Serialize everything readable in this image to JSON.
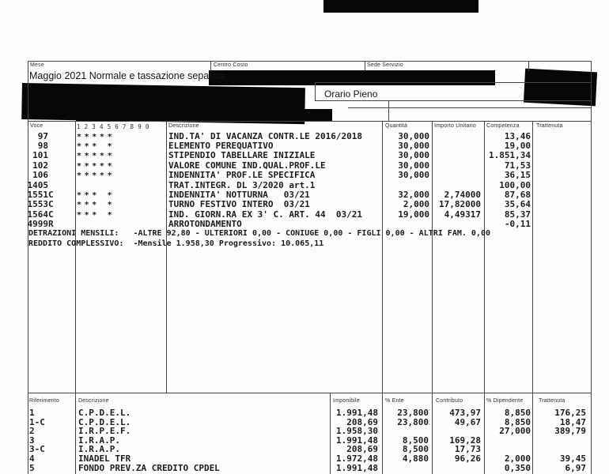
{
  "header": {
    "mese_label": "Mese",
    "centro_costo_label": "Centro Costo",
    "sede_servizio_label": "Sede Servizio",
    "periodo": "Maggio 2021 Normale e tassazione separata",
    "orario": "Orario Pieno"
  },
  "voci_table": {
    "headers": {
      "voce": "Voce",
      "digits": "1 2 3 4 5 6 7 8 9 0",
      "descrizione": "Descrizione",
      "quantita": "Quantità",
      "importo_unitario": "Importo Unitario",
      "competenza": "Competenza",
      "trattenuta": "Trattenuta"
    },
    "rows": [
      {
        "voce": "97",
        "stars": [
          1,
          2,
          3,
          4,
          5
        ],
        "descrizione": "IND.TA' DI VACANZA CONTR.LE 2016/2018",
        "quantita": "30,000",
        "importo_unitario": "",
        "competenza": "13,46",
        "trattenuta": ""
      },
      {
        "voce": "98",
        "stars": [
          1,
          2,
          3,
          5
        ],
        "descrizione": "ELEMENTO PEREQUATIVO",
        "quantita": "30,000",
        "importo_unitario": "",
        "competenza": "19,00",
        "trattenuta": ""
      },
      {
        "voce": "101",
        "stars": [
          1,
          2,
          3,
          4,
          5
        ],
        "descrizione": "STIPENDIO TABELLARE INIZIALE",
        "quantita": "30,000",
        "importo_unitario": "",
        "competenza": "1.851,34",
        "trattenuta": ""
      },
      {
        "voce": "102",
        "stars": [
          1,
          2,
          3,
          4,
          5
        ],
        "descrizione": "VALORE COMUNE IND.QUAL.PROF.LE",
        "quantita": "30,000",
        "importo_unitario": "",
        "competenza": "71,53",
        "trattenuta": ""
      },
      {
        "voce": "106",
        "stars": [
          1,
          2,
          3,
          4,
          5
        ],
        "descrizione": "INDENNITA' PROF.LE SPECIFICA",
        "quantita": "30,000",
        "importo_unitario": "",
        "competenza": "36,15",
        "trattenuta": ""
      },
      {
        "voce": "1405",
        "stars": [],
        "descrizione": "TRAT.INTEGR. DL 3/2020 art.1",
        "quantita": "",
        "importo_unitario": "",
        "competenza": "100,00",
        "trattenuta": ""
      },
      {
        "voce": "1551C",
        "stars": [
          1,
          2,
          3,
          5
        ],
        "descrizione": "INDENNITA' NOTTURNA   03/21",
        "quantita": "32,000",
        "importo_unitario": "2,74000",
        "competenza": "87,68",
        "trattenuta": ""
      },
      {
        "voce": "1553C",
        "stars": [
          1,
          2,
          3,
          5
        ],
        "descrizione": "TURNO FESTIVO INTERO  03/21",
        "quantita": "2,000",
        "importo_unitario": "17,82000",
        "competenza": "35,64",
        "trattenuta": ""
      },
      {
        "voce": "1564C",
        "stars": [
          1,
          2,
          3,
          5
        ],
        "descrizione": "IND. GIORN.RA EX 3' C. ART. 44  03/21",
        "quantita": "19,000",
        "importo_unitario": "4,49317",
        "competenza": "85,37",
        "trattenuta": ""
      },
      {
        "voce": "4999R",
        "stars": [],
        "descrizione": "ARROTONDAMENTO",
        "quantita": "",
        "importo_unitario": "",
        "competenza": "-0,11",
        "trattenuta": ""
      }
    ],
    "detrazioni_line": "DETRAZIONI MENSILI:   -ALTRE 92,80 - ULTERIORI 0,00 - CONIUGE 0,00 - FIGLI 0,00 - ALTRI FAM. 0,00",
    "reddito_line": "REDDITO COMPLESSIVO:  -Mensile 1.958,30 Progressivo: 10.065,11"
  },
  "contributi_table": {
    "headers": {
      "riferimento": "Riferimento",
      "descrizione": "Descrizione",
      "imponibile": "Imponibile",
      "ente_pct": "% Ente",
      "contributo": "Contributo",
      "dipendente_pct": "% Dipendente",
      "trattenuta": "Trattenuta"
    },
    "rows": [
      {
        "riferimento": "1",
        "descrizione": "C.P.D.E.L.",
        "imponibile": "1.991,48",
        "ente_pct": "23,800",
        "contributo": "473,97",
        "dipendente_pct": "8,850",
        "trattenuta": "176,25"
      },
      {
        "riferimento": "1-C",
        "descrizione": "C.P.D.E.L.",
        "imponibile": "208,69",
        "ente_pct": "23,800",
        "contributo": "49,67",
        "dipendente_pct": "8,850",
        "trattenuta": "18,47"
      },
      {
        "riferimento": "2",
        "descrizione": "I.R.P.E.F.",
        "imponibile": "1.958,30",
        "ente_pct": "",
        "contributo": "",
        "dipendente_pct": "27,000",
        "trattenuta": "389,79"
      },
      {
        "riferimento": "3",
        "descrizione": "I.R.A.P.",
        "imponibile": "1.991,48",
        "ente_pct": "8,500",
        "contributo": "169,28",
        "dipendente_pct": "",
        "trattenuta": ""
      },
      {
        "riferimento": "3-C",
        "descrizione": "I.R.A.P.",
        "imponibile": "208,69",
        "ente_pct": "8,500",
        "contributo": "17,73",
        "dipendente_pct": "",
        "trattenuta": ""
      },
      {
        "riferimento": "4",
        "descrizione": "INADEL TFR",
        "imponibile": "1.972,48",
        "ente_pct": "4,880",
        "contributo": "96,26",
        "dipendente_pct": "2,000",
        "trattenuta": "39,45"
      },
      {
        "riferimento": "5",
        "descrizione": "FONDO PREV.ZA CREDITO CPDEL",
        "imponibile": "1.991,48",
        "ente_pct": "",
        "contributo": "",
        "dipendente_pct": "0,350",
        "trattenuta": "6,97"
      }
    ]
  },
  "colors": {
    "redaction": "#070707",
    "line": "#454545",
    "text": "#1c1c1c",
    "background": "#fdfdfd"
  }
}
